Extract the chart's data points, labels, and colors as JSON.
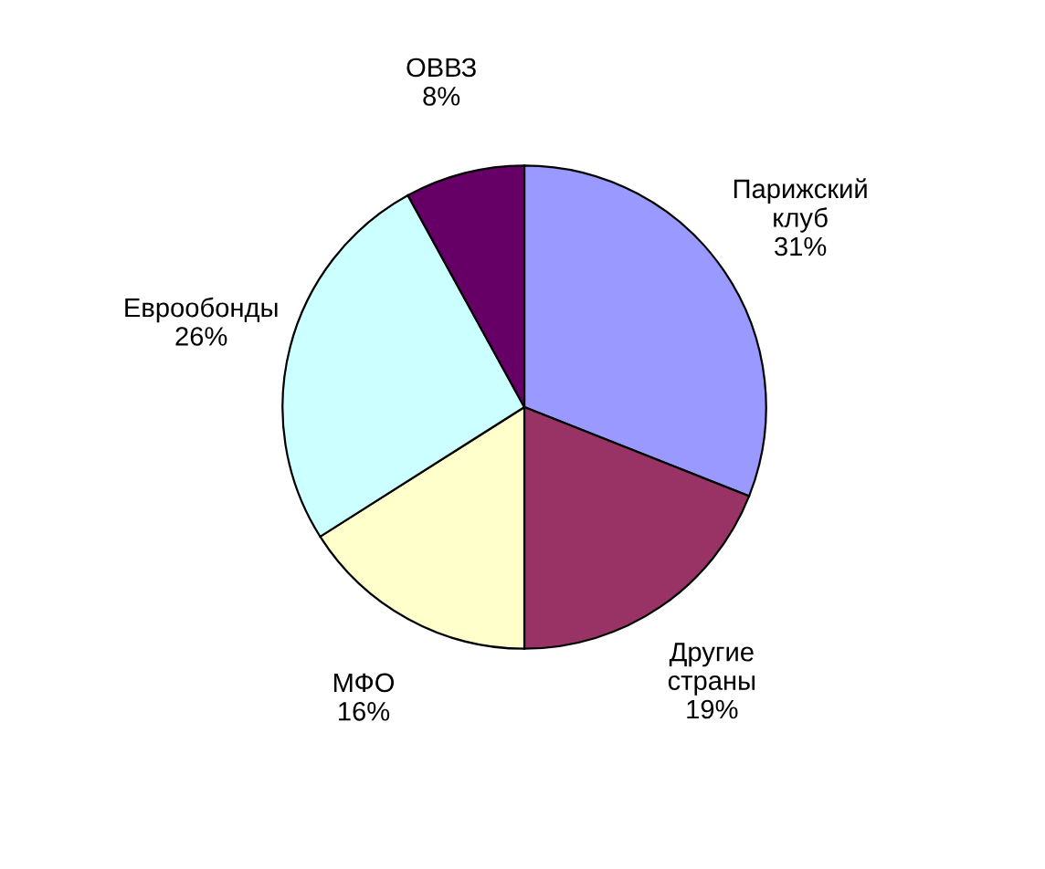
{
  "chart_data": {
    "type": "pie",
    "categories": [
      "Парижский\nклуб",
      "Другие\nстраны",
      "МФО",
      "Еврообонды",
      "ОВВЗ"
    ],
    "values": [
      31,
      19,
      16,
      26,
      8
    ],
    "value_labels": [
      "31%",
      "19%",
      "16%",
      "26%",
      "8%"
    ],
    "colors": [
      "#9999ff",
      "#993366",
      "#ffffcc",
      "#ccffff",
      "#660066"
    ],
    "legend": false
  }
}
